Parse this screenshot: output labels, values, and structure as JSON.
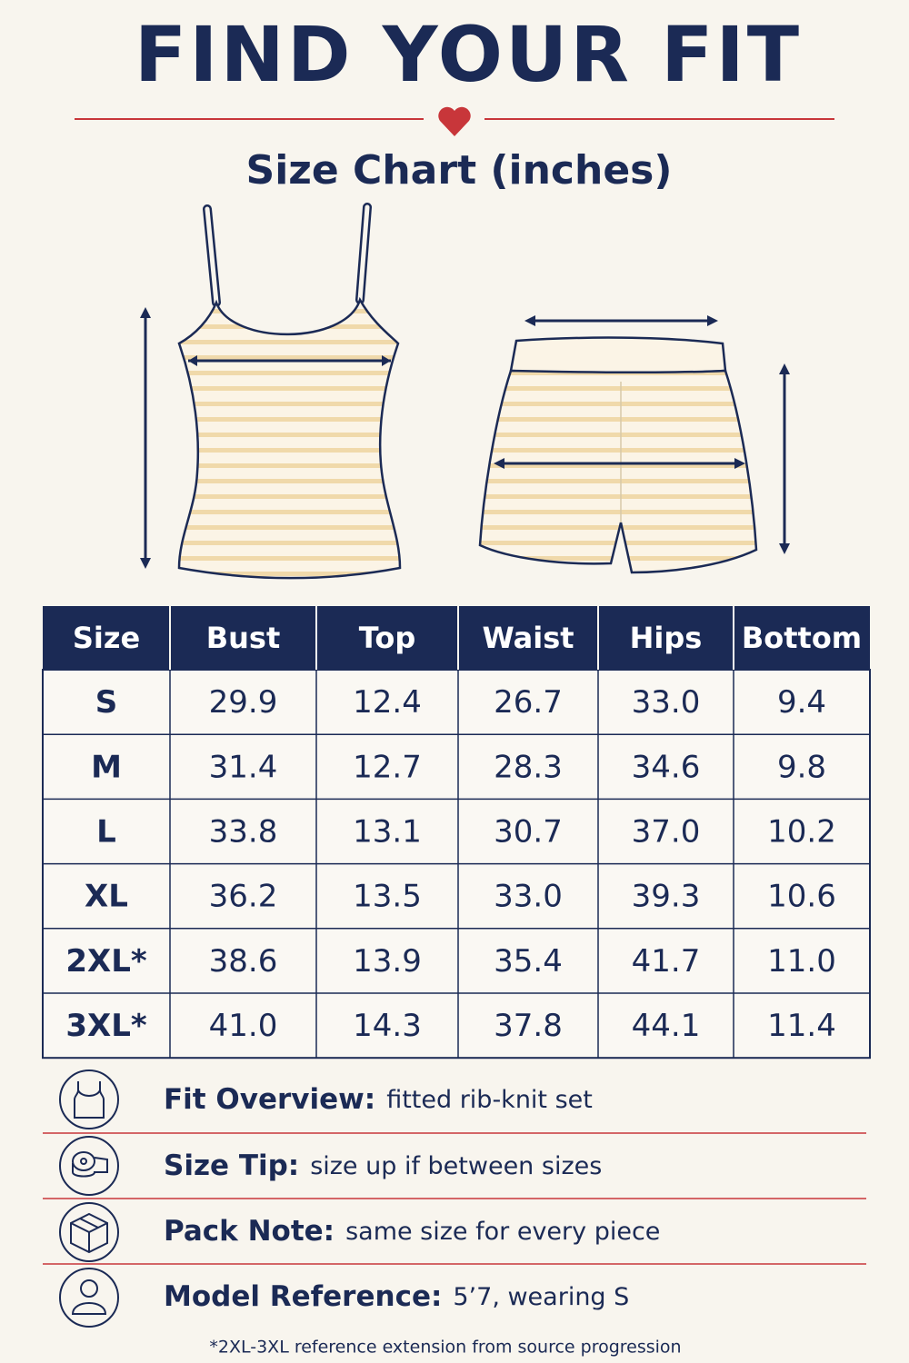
{
  "header": {
    "title": "FIND YOUR FIT",
    "subtitle": "Size Chart (inches)"
  },
  "table": {
    "columns": [
      "Size",
      "Bust",
      "Top",
      "Waist",
      "Hips",
      "Bottom"
    ],
    "rows": [
      [
        "S",
        "29.9",
        "12.4",
        "26.7",
        "33.0",
        "9.4"
      ],
      [
        "M",
        "31.4",
        "12.7",
        "28.3",
        "34.6",
        "9.8"
      ],
      [
        "L",
        "33.8",
        "13.1",
        "30.7",
        "37.0",
        "10.2"
      ],
      [
        "XL",
        "36.2",
        "13.5",
        "33.0",
        "39.3",
        "10.6"
      ],
      [
        "2XL*",
        "38.6",
        "13.9",
        "35.4",
        "41.7",
        "11.0"
      ],
      [
        "3XL*",
        "41.0",
        "14.3",
        "37.8",
        "44.1",
        "11.4"
      ]
    ]
  },
  "notes": [
    {
      "label": "Fit Overview:",
      "text": "fitted rib-knit set"
    },
    {
      "label": "Size Tip:",
      "text": "size up if between sizes"
    },
    {
      "label": "Pack Note:",
      "text": "same size for every piece"
    },
    {
      "label": "Model Reference:",
      "text": "5’7, wearing S"
    }
  ],
  "footnote": "*2XL-3XL reference extension from source progression"
}
